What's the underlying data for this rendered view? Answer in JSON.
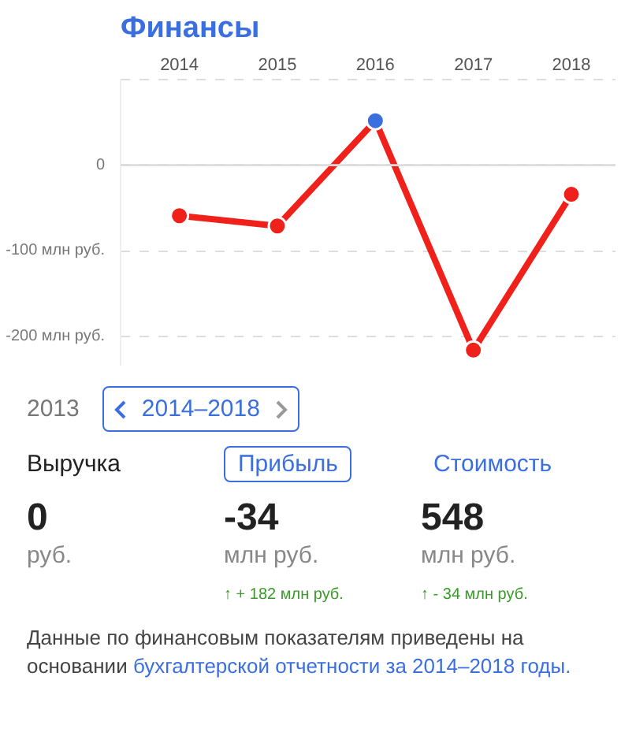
{
  "chart_data": {
    "type": "line",
    "title": "Финансы",
    "categories": [
      "2014",
      "2015",
      "2016",
      "2017",
      "2018"
    ],
    "series": [
      {
        "color": "#f0201a",
        "colors": [
          "#f0201a",
          "#f0201a",
          "#3b6fe0",
          "#f0201a",
          "#f0201a"
        ],
        "values": [
          -59,
          -71,
          52,
          -216,
          -34
        ]
      }
    ],
    "ylim": [
      -235,
      100
    ],
    "yticks": [
      0,
      {
        "value": -100,
        "label": "-100 млн руб."
      },
      {
        "value": -200,
        "label": "-200 млн руб."
      }
    ],
    "grid": "y",
    "marker": "circle",
    "line_style": "solid",
    "ref_lines": [
      {
        "axis": "y",
        "value": 0,
        "color": "#dddddd"
      }
    ],
    "annotations": [
      "2013",
      "2014–2018",
      "Выручка",
      "Прибыль",
      "Стоимость",
      "0",
      "-34",
      "548",
      "руб.",
      "млн руб.",
      "млн руб.",
      "↑ + 182 млн руб.",
      "↑ - 34 млн руб.",
      "Данные по финансовым показателям приведены на основании",
      "бухгалтерской отчетности за 2014–2018 годы."
    ]
  }
}
